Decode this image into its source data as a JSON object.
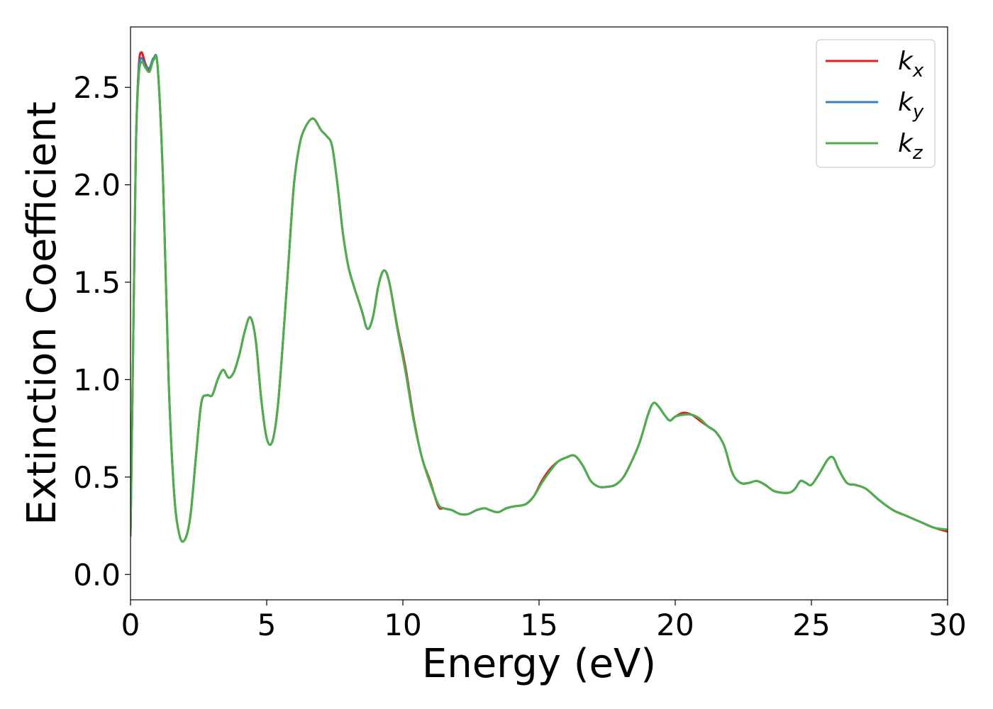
{
  "chart_data": {
    "type": "line",
    "xlabel": "Energy (eV)",
    "ylabel": "Extinction Coefficient",
    "xlim": [
      0,
      30
    ],
    "ylim": [
      -0.13,
      2.81
    ],
    "xticks": [
      0,
      5,
      10,
      15,
      20,
      25,
      30
    ],
    "xtick_labels": [
      "0",
      "5",
      "10",
      "15",
      "20",
      "25",
      "30"
    ],
    "yticks": [
      0.0,
      0.5,
      1.0,
      1.5,
      2.0,
      2.5
    ],
    "ytick_labels": [
      "0.0",
      "0.5",
      "1.0",
      "1.5",
      "2.0",
      "2.5"
    ],
    "grid": false,
    "legend_position": "top-right",
    "series": [
      {
        "name": "k",
        "subscript": "x",
        "color": "#e41a1c",
        "x": [
          0,
          0.1,
          0.2,
          0.3,
          0.4,
          0.55,
          0.7,
          0.85,
          1.0,
          1.2,
          1.4,
          1.6,
          1.8,
          2.0,
          2.2,
          2.4,
          2.6,
          2.8,
          3.0,
          3.2,
          3.4,
          3.6,
          3.8,
          4.0,
          4.2,
          4.4,
          4.6,
          4.8,
          5.0,
          5.2,
          5.4,
          5.6,
          5.8,
          6.0,
          6.2,
          6.4,
          6.7,
          7.0,
          7.2,
          7.4,
          7.6,
          7.8,
          8.0,
          8.2,
          8.5,
          8.7,
          8.9,
          9.1,
          9.3,
          9.5,
          9.8,
          10.1,
          10.4,
          10.7,
          11.0,
          11.3,
          11.5,
          11.8,
          12.1,
          12.4,
          12.7,
          13.0,
          13.2,
          13.5,
          13.8,
          14.1,
          14.5,
          14.8,
          15.1,
          15.4,
          15.7,
          16.0,
          16.3,
          16.6,
          16.9,
          17.2,
          17.5,
          17.8,
          18.1,
          18.4,
          18.7,
          19.0,
          19.2,
          19.4,
          19.6,
          19.8,
          20.0,
          20.3,
          20.6,
          20.9,
          21.2,
          21.5,
          21.8,
          22.1,
          22.4,
          22.7,
          23.0,
          23.3,
          23.6,
          23.9,
          24.2,
          24.4,
          24.6,
          24.8,
          25.0,
          25.3,
          25.6,
          25.8,
          26.0,
          26.3,
          26.6,
          27.0,
          27.5,
          28.0,
          28.5,
          29.0,
          29.5,
          30.0
        ],
        "values": [
          0.2,
          1.2,
          2.2,
          2.6,
          2.68,
          2.62,
          2.59,
          2.65,
          2.6,
          2.0,
          1.0,
          0.42,
          0.2,
          0.18,
          0.3,
          0.6,
          0.88,
          0.92,
          0.92,
          1.0,
          1.05,
          1.01,
          1.04,
          1.13,
          1.25,
          1.32,
          1.2,
          0.9,
          0.7,
          0.68,
          0.85,
          1.2,
          1.6,
          2.0,
          2.2,
          2.29,
          2.34,
          2.28,
          2.25,
          2.2,
          2.0,
          1.75,
          1.58,
          1.48,
          1.35,
          1.26,
          1.32,
          1.48,
          1.56,
          1.5,
          1.27,
          1.06,
          0.8,
          0.6,
          0.48,
          0.35,
          0.34,
          0.33,
          0.31,
          0.31,
          0.33,
          0.34,
          0.33,
          0.32,
          0.34,
          0.35,
          0.36,
          0.4,
          0.48,
          0.54,
          0.58,
          0.6,
          0.61,
          0.56,
          0.48,
          0.45,
          0.45,
          0.46,
          0.5,
          0.58,
          0.68,
          0.82,
          0.88,
          0.86,
          0.82,
          0.79,
          0.81,
          0.83,
          0.82,
          0.79,
          0.76,
          0.73,
          0.66,
          0.52,
          0.47,
          0.47,
          0.48,
          0.46,
          0.43,
          0.42,
          0.42,
          0.44,
          0.48,
          0.47,
          0.46,
          0.52,
          0.59,
          0.6,
          0.54,
          0.47,
          0.46,
          0.44,
          0.38,
          0.33,
          0.3,
          0.27,
          0.24,
          0.22
        ]
      },
      {
        "name": "k",
        "subscript": "y",
        "color": "#377eb8",
        "x": [
          0,
          0.1,
          0.2,
          0.3,
          0.4,
          0.55,
          0.7,
          0.85,
          1.0,
          1.2,
          1.4,
          1.6,
          1.8,
          2.0,
          2.2,
          2.4,
          2.6,
          2.8,
          3.0,
          3.2,
          3.4,
          3.6,
          3.8,
          4.0,
          4.2,
          4.4,
          4.6,
          4.8,
          5.0,
          5.2,
          5.4,
          5.6,
          5.8,
          6.0,
          6.2,
          6.4,
          6.7,
          7.0,
          7.2,
          7.4,
          7.6,
          7.8,
          8.0,
          8.2,
          8.5,
          8.7,
          8.9,
          9.1,
          9.3,
          9.5,
          9.8,
          10.1,
          10.4,
          10.7,
          11.0,
          11.3,
          11.5,
          11.8,
          12.1,
          12.4,
          12.7,
          13.0,
          13.2,
          13.5,
          13.8,
          14.1,
          14.5,
          14.8,
          15.1,
          15.4,
          15.7,
          16.0,
          16.3,
          16.6,
          16.9,
          17.2,
          17.5,
          17.8,
          18.1,
          18.4,
          18.7,
          19.0,
          19.2,
          19.4,
          19.6,
          19.8,
          20.0,
          20.3,
          20.6,
          20.9,
          21.2,
          21.5,
          21.8,
          22.1,
          22.4,
          22.7,
          23.0,
          23.3,
          23.6,
          23.9,
          24.2,
          24.4,
          24.6,
          24.8,
          25.0,
          25.3,
          25.6,
          25.8,
          26.0,
          26.3,
          26.6,
          27.0,
          27.5,
          28.0,
          28.5,
          29.0,
          29.5,
          30.0
        ],
        "values": [
          0.2,
          1.2,
          2.2,
          2.58,
          2.65,
          2.61,
          2.6,
          2.65,
          2.6,
          2.0,
          1.0,
          0.42,
          0.2,
          0.18,
          0.3,
          0.6,
          0.88,
          0.92,
          0.92,
          1.0,
          1.05,
          1.01,
          1.04,
          1.13,
          1.25,
          1.32,
          1.2,
          0.9,
          0.7,
          0.68,
          0.85,
          1.2,
          1.6,
          2.0,
          2.2,
          2.29,
          2.34,
          2.28,
          2.25,
          2.2,
          2.0,
          1.75,
          1.58,
          1.48,
          1.35,
          1.26,
          1.32,
          1.48,
          1.56,
          1.5,
          1.26,
          1.04,
          0.79,
          0.6,
          0.47,
          0.36,
          0.34,
          0.33,
          0.31,
          0.31,
          0.33,
          0.34,
          0.33,
          0.32,
          0.34,
          0.35,
          0.36,
          0.4,
          0.47,
          0.53,
          0.58,
          0.6,
          0.61,
          0.56,
          0.48,
          0.45,
          0.45,
          0.46,
          0.5,
          0.58,
          0.68,
          0.82,
          0.88,
          0.86,
          0.82,
          0.79,
          0.81,
          0.82,
          0.82,
          0.8,
          0.76,
          0.73,
          0.66,
          0.52,
          0.47,
          0.47,
          0.48,
          0.46,
          0.43,
          0.42,
          0.42,
          0.44,
          0.48,
          0.47,
          0.46,
          0.52,
          0.59,
          0.6,
          0.54,
          0.47,
          0.46,
          0.44,
          0.38,
          0.33,
          0.3,
          0.27,
          0.24,
          0.23
        ]
      },
      {
        "name": "k",
        "subscript": "z",
        "color": "#4daf4a",
        "x": [
          0,
          0.1,
          0.2,
          0.3,
          0.4,
          0.55,
          0.7,
          0.85,
          1.0,
          1.2,
          1.4,
          1.6,
          1.8,
          2.0,
          2.2,
          2.4,
          2.6,
          2.8,
          3.0,
          3.2,
          3.4,
          3.6,
          3.8,
          4.0,
          4.2,
          4.4,
          4.6,
          4.8,
          5.0,
          5.2,
          5.4,
          5.6,
          5.8,
          6.0,
          6.2,
          6.4,
          6.7,
          7.0,
          7.2,
          7.4,
          7.6,
          7.8,
          8.0,
          8.2,
          8.5,
          8.7,
          8.9,
          9.1,
          9.3,
          9.5,
          9.8,
          10.1,
          10.4,
          10.7,
          11.0,
          11.3,
          11.5,
          11.8,
          12.1,
          12.4,
          12.7,
          13.0,
          13.2,
          13.5,
          13.8,
          14.1,
          14.5,
          14.8,
          15.1,
          15.4,
          15.7,
          16.0,
          16.3,
          16.6,
          16.9,
          17.2,
          17.5,
          17.8,
          18.1,
          18.4,
          18.7,
          19.0,
          19.2,
          19.4,
          19.6,
          19.8,
          20.0,
          20.3,
          20.6,
          20.9,
          21.2,
          21.5,
          21.8,
          22.1,
          22.4,
          22.7,
          23.0,
          23.3,
          23.6,
          23.9,
          24.2,
          24.4,
          24.6,
          24.8,
          25.0,
          25.3,
          25.6,
          25.8,
          26.0,
          26.3,
          26.6,
          27.0,
          27.5,
          28.0,
          28.5,
          29.0,
          29.5,
          30.0
        ],
        "values": [
          0.2,
          1.2,
          2.2,
          2.55,
          2.63,
          2.6,
          2.58,
          2.64,
          2.6,
          2.0,
          1.0,
          0.42,
          0.2,
          0.18,
          0.3,
          0.6,
          0.88,
          0.92,
          0.92,
          1.0,
          1.05,
          1.01,
          1.04,
          1.13,
          1.25,
          1.32,
          1.2,
          0.9,
          0.7,
          0.68,
          0.85,
          1.2,
          1.6,
          2.0,
          2.2,
          2.29,
          2.34,
          2.28,
          2.25,
          2.2,
          2.0,
          1.75,
          1.58,
          1.48,
          1.35,
          1.26,
          1.32,
          1.48,
          1.56,
          1.5,
          1.26,
          1.04,
          0.79,
          0.6,
          0.47,
          0.36,
          0.34,
          0.33,
          0.31,
          0.31,
          0.33,
          0.34,
          0.33,
          0.32,
          0.34,
          0.35,
          0.36,
          0.4,
          0.47,
          0.53,
          0.58,
          0.6,
          0.61,
          0.56,
          0.48,
          0.45,
          0.45,
          0.46,
          0.5,
          0.58,
          0.68,
          0.82,
          0.88,
          0.86,
          0.82,
          0.79,
          0.81,
          0.82,
          0.82,
          0.8,
          0.76,
          0.73,
          0.66,
          0.52,
          0.47,
          0.47,
          0.48,
          0.46,
          0.43,
          0.42,
          0.42,
          0.44,
          0.48,
          0.47,
          0.46,
          0.52,
          0.59,
          0.6,
          0.54,
          0.47,
          0.46,
          0.44,
          0.38,
          0.33,
          0.3,
          0.27,
          0.24,
          0.23
        ]
      }
    ]
  }
}
